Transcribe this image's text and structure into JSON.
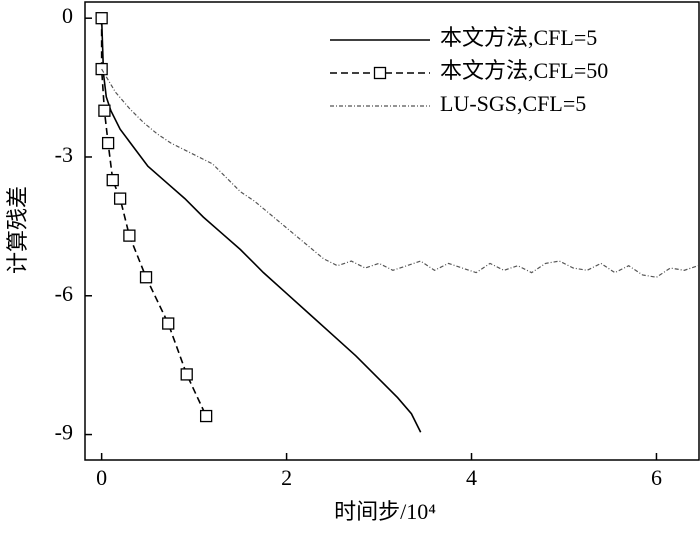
{
  "chart_data": {
    "type": "line",
    "x_label": "时间步/10⁴",
    "y_label": "计算残差",
    "xlim": [
      -0.18,
      6.46
    ],
    "ylim": [
      -9.55,
      0.35
    ],
    "xticks": [
      0,
      2,
      4,
      6
    ],
    "yticks": [
      0,
      -3,
      -6,
      -9
    ],
    "legend": "top-right",
    "series": [
      {
        "name": "本文方法,CFL=5",
        "color": "#000000",
        "style": "solid",
        "x": [
          0,
          0.02,
          0.05,
          0.1,
          0.2,
          0.35,
          0.5,
          0.7,
          0.9,
          1.1,
          1.3,
          1.5,
          1.75,
          2.0,
          2.25,
          2.5,
          2.75,
          3.0,
          3.2,
          3.35,
          3.45
        ],
        "values": [
          0,
          -1.2,
          -1.7,
          -2.0,
          -2.4,
          -2.8,
          -3.2,
          -3.55,
          -3.9,
          -4.3,
          -4.65,
          -5.0,
          -5.5,
          -5.95,
          -6.4,
          -6.85,
          -7.3,
          -7.8,
          -8.2,
          -8.55,
          -8.95
        ]
      },
      {
        "name": "本文方法,CFL=50",
        "color": "#000000",
        "style": "dashed",
        "marker": "square",
        "x": [
          0,
          0,
          0.03,
          0.07,
          0.12,
          0.2,
          0.3,
          0.48,
          0.72,
          0.92,
          1.13
        ],
        "values": [
          0,
          -1.1,
          -2.0,
          -2.7,
          -3.5,
          -3.9,
          -4.7,
          -5.6,
          -6.6,
          -7.7,
          -8.6
        ]
      },
      {
        "name": "LU-SGS,CFL=5",
        "color": "#555555",
        "style": "dashdot",
        "x": [
          0,
          0.15,
          0.3,
          0.45,
          0.6,
          0.75,
          0.9,
          1.05,
          1.2,
          1.35,
          1.5,
          1.65,
          1.8,
          1.95,
          2.1,
          2.25,
          2.4,
          2.55,
          2.7,
          2.85,
          3.0,
          3.15,
          3.3,
          3.45,
          3.6,
          3.75,
          3.9,
          4.05,
          4.2,
          4.35,
          4.5,
          4.65,
          4.8,
          4.95,
          5.1,
          5.25,
          5.4,
          5.55,
          5.7,
          5.85,
          6.0,
          6.15,
          6.3,
          6.45
        ],
        "values": [
          -1.1,
          -1.6,
          -1.95,
          -2.25,
          -2.5,
          -2.7,
          -2.85,
          -3.0,
          -3.15,
          -3.45,
          -3.75,
          -3.95,
          -4.2,
          -4.45,
          -4.7,
          -4.95,
          -5.2,
          -5.35,
          -5.25,
          -5.4,
          -5.3,
          -5.45,
          -5.35,
          -5.25,
          -5.45,
          -5.3,
          -5.4,
          -5.5,
          -5.3,
          -5.45,
          -5.35,
          -5.5,
          -5.3,
          -5.25,
          -5.4,
          -5.45,
          -5.3,
          -5.5,
          -5.35,
          -5.55,
          -5.6,
          -5.4,
          -5.45,
          -5.35
        ]
      }
    ]
  }
}
